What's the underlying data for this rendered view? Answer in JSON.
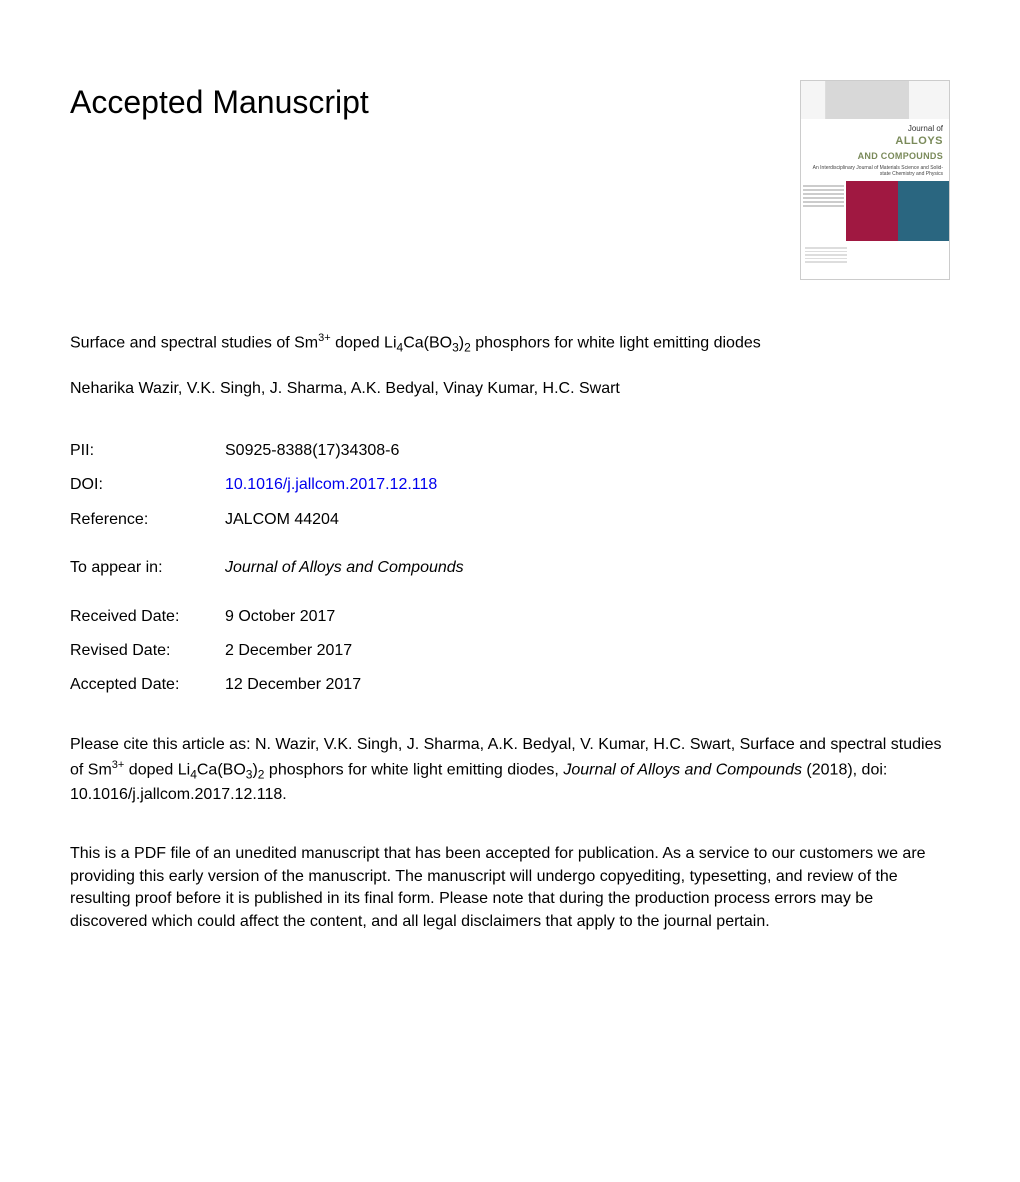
{
  "heading": "Accepted Manuscript",
  "cover": {
    "journal_of": "Journal of",
    "alloys": "ALLOYS",
    "and_compounds": "AND COMPOUNDS",
    "subtitle": "An Interdisciplinary Journal of Materials Science and Solid-state Chemistry and Physics"
  },
  "article": {
    "title_pre": "Surface and spectral studies of Sm",
    "title_sup": "3+",
    "title_mid": " doped Li",
    "title_sub1": "4",
    "title_mid2": "Ca(BO",
    "title_sub2": "3",
    "title_mid3": ")",
    "title_sub3": "2",
    "title_post": " phosphors for white light emitting diodes"
  },
  "authors": "Neharika Wazir, V.K. Singh, J. Sharma, A.K. Bedyal, Vinay Kumar, H.C. Swart",
  "meta": {
    "pii_label": "PII:",
    "pii_value": "S0925-8388(17)34308-6",
    "doi_label": "DOI:",
    "doi_value": "10.1016/j.jallcom.2017.12.118",
    "ref_label": "Reference:",
    "ref_value": "JALCOM 44204",
    "appear_label": "To appear in:",
    "appear_value": "Journal of Alloys and Compounds",
    "received_label": "Received Date:",
    "received_value": "9 October 2017",
    "revised_label": "Revised Date:",
    "revised_value": "2 December 2017",
    "accepted_label": "Accepted Date:",
    "accepted_value": "12 December 2017"
  },
  "citation": {
    "pre": "Please cite this article as: N. Wazir, V.K. Singh, J. Sharma, A.K. Bedyal, V. Kumar, H.C. Swart, Surface and spectral studies of Sm",
    "sup": "3+",
    "mid": " doped Li",
    "sub1": "4",
    "mid2": "Ca(BO",
    "sub2": "3",
    "mid3": ")",
    "sub3": "2",
    "mid4": " phosphors for white light emitting diodes, ",
    "journal": "Journal of Alloys and Compounds",
    "post": " (2018), doi: 10.1016/j.jallcom.2017.12.118."
  },
  "disclaimer": "This is a PDF file of an unedited manuscript that has been accepted for publication. As a service to our customers we are providing this early version of the manuscript. The manuscript will undergo copyediting, typesetting, and review of the resulting proof before it is published in its final form. Please note that during the production process errors may be discovered which could affect the content, and all legal disclaimers that apply to the journal pertain.",
  "colors": {
    "link": "#0000ee",
    "cover_green": "#7a8a5a",
    "cover_maroon": "#a01841",
    "cover_teal": "#2a6680"
  }
}
